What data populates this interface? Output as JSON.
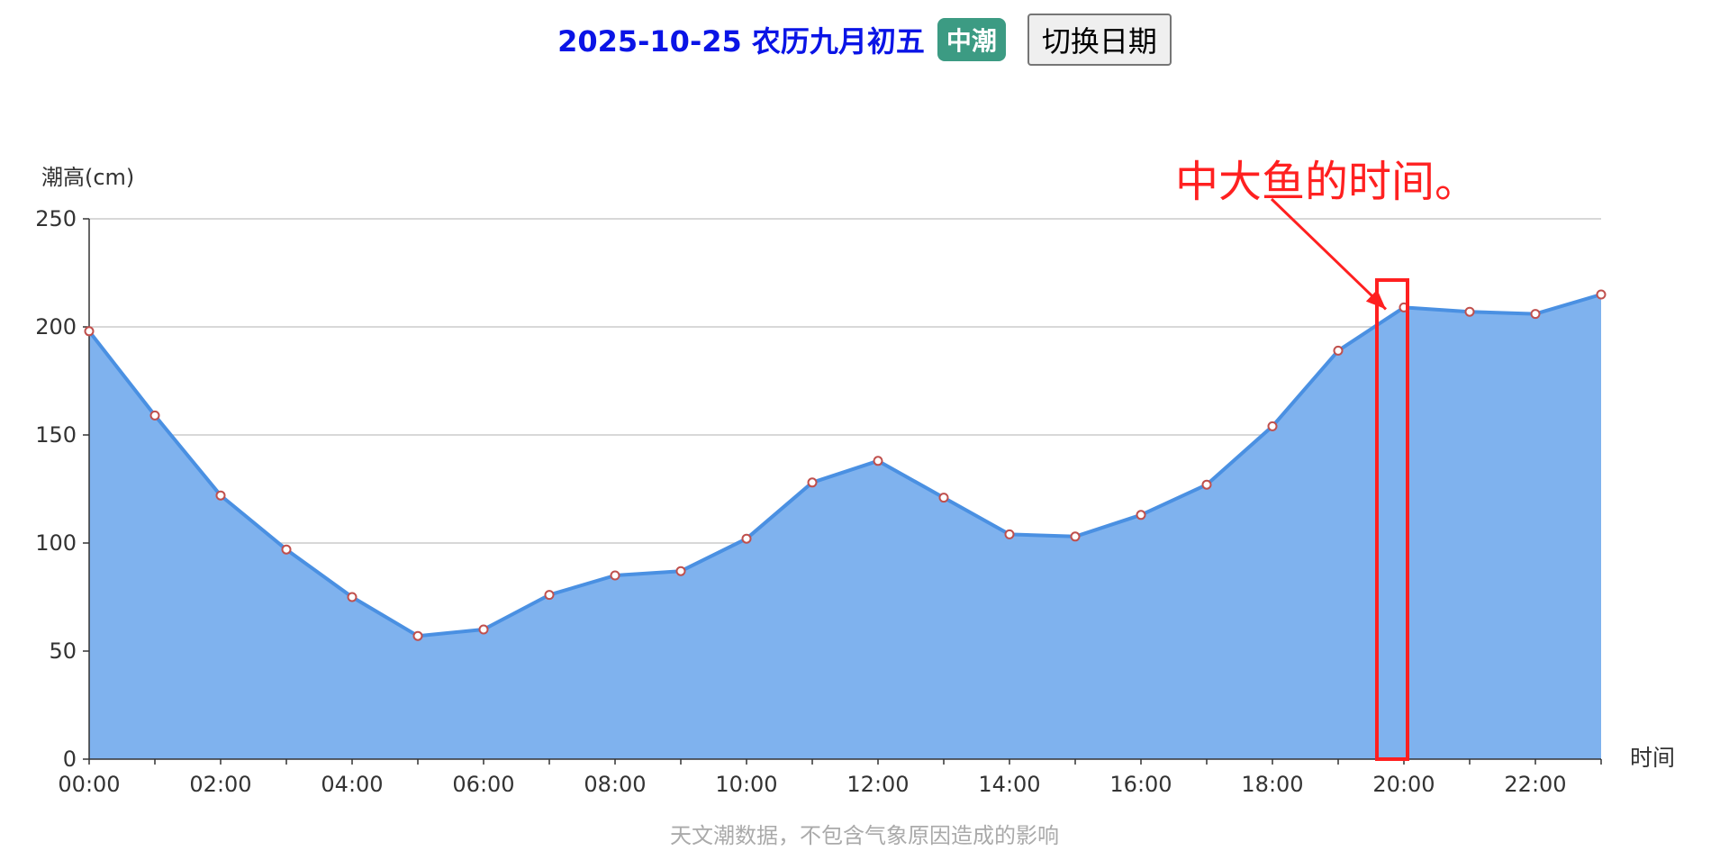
{
  "header": {
    "date_text": "2025-10-25 农历九月初五",
    "tide_badge": "中潮",
    "switch_button": "切换日期"
  },
  "colors": {
    "date": "#0a14e6",
    "badge_bg": "#3c9b83",
    "area_fill": "#7fb2ee",
    "line": "#4a90e2",
    "point_stroke": "#c0504d",
    "annotation": "#ff2020",
    "grid": "#cccccc",
    "axis_text": "#333333",
    "footnote": "#aaaaaa"
  },
  "footnote": "天文潮数据，不包含气象原因造成的影响",
  "chart_data": {
    "type": "area",
    "ylabel": "潮高(cm)",
    "xlabel": "时间",
    "ylim": [
      0,
      250
    ],
    "yticks": [
      "0",
      "50",
      "100",
      "150",
      "200",
      "250"
    ],
    "x": [
      "00:00",
      "01:00",
      "02:00",
      "03:00",
      "04:00",
      "05:00",
      "06:00",
      "07:00",
      "08:00",
      "09:00",
      "10:00",
      "11:00",
      "12:00",
      "13:00",
      "14:00",
      "15:00",
      "16:00",
      "17:00",
      "18:00",
      "19:00",
      "20:00",
      "21:00",
      "22:00",
      "23:00"
    ],
    "xtick_labels": [
      "00:00",
      "02:00",
      "04:00",
      "06:00",
      "08:00",
      "10:00",
      "12:00",
      "14:00",
      "16:00",
      "18:00",
      "20:00",
      "22:00"
    ],
    "series": [
      {
        "values": [
          198,
          159,
          122,
          97,
          75,
          57,
          60,
          76,
          85,
          87,
          102,
          128,
          138,
          121,
          104,
          103,
          113,
          127,
          154,
          189,
          209,
          207,
          206,
          215
        ]
      }
    ],
    "grid": true,
    "annotation": {
      "text": "中大鱼的时间。",
      "highlight_x": "20:00"
    }
  }
}
